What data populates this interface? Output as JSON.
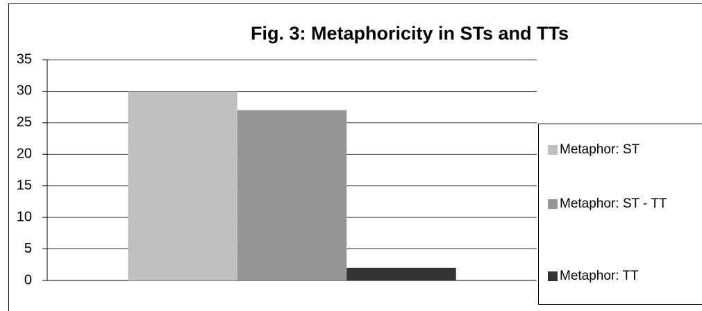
{
  "chart_data": {
    "type": "bar",
    "title": "Fig. 3: Metaphoricity in STs and TTs",
    "categories": [
      null
    ],
    "series": [
      {
        "name": "Metaphor: ST",
        "color": "#c0c0c0",
        "values": [
          30
        ]
      },
      {
        "name": "Metaphor: ST - TT",
        "color": "#969696",
        "values": [
          27
        ]
      },
      {
        "name": "Metaphor: TT",
        "color": "#333333",
        "values": [
          2
        ]
      }
    ],
    "ylim": [
      0,
      35
    ],
    "yticks": [
      0,
      5,
      10,
      15,
      20,
      25,
      30,
      35
    ],
    "grid": true,
    "legend": "right"
  }
}
